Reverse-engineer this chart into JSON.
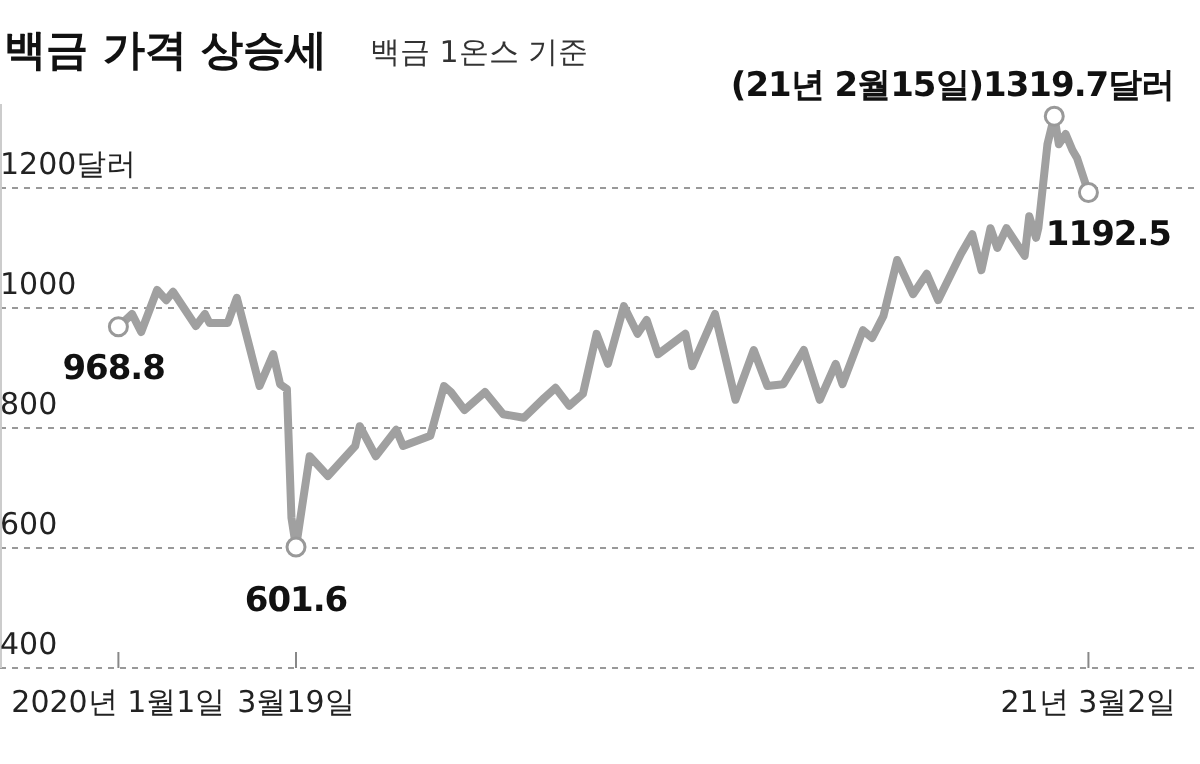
{
  "chart_data": {
    "type": "line",
    "title": "백금 가격 상승세",
    "subtitle": "백금 1온스 기준",
    "x": [
      "2020-01-01",
      "2020-01-07",
      "2020-01-11",
      "2020-01-18",
      "2020-01-22",
      "2020-01-25",
      "2020-02-04",
      "2020-02-08",
      "2020-02-10",
      "2020-02-18",
      "2020-02-22",
      "2020-03-03",
      "2020-03-09",
      "2020-03-12",
      "2020-03-15",
      "2020-03-17",
      "2020-03-19",
      "2020-03-25",
      "2020-04-02",
      "2020-04-14",
      "2020-04-16",
      "2020-04-23",
      "2020-05-02",
      "2020-05-05",
      "2020-05-17",
      "2020-05-23",
      "2020-05-26",
      "2020-06-01",
      "2020-06-10",
      "2020-06-18",
      "2020-06-27",
      "2020-07-06",
      "2020-07-11",
      "2020-07-17",
      "2020-07-23",
      "2020-07-29",
      "2020-08-03",
      "2020-08-10",
      "2020-08-16",
      "2020-08-20",
      "2020-08-25",
      "2020-09-06",
      "2020-09-09",
      "2020-09-19",
      "2020-09-28",
      "2020-10-06",
      "2020-10-12",
      "2020-10-19",
      "2020-10-28",
      "2020-11-04",
      "2020-11-11",
      "2020-11-14",
      "2020-11-23",
      "2020-11-27",
      "2020-12-02",
      "2020-12-08",
      "2020-12-15",
      "2020-12-21",
      "2020-12-26",
      "2021-01-05",
      "2021-01-10",
      "2021-01-14",
      "2021-01-18",
      "2021-01-21",
      "2021-01-25",
      "2021-02-02",
      "2021-02-04",
      "2021-02-07",
      "2021-02-08",
      "2021-02-12",
      "2021-02-15",
      "2021-02-17",
      "2021-02-20",
      "2021-02-23",
      "2021-02-25",
      "2021-03-02"
    ],
    "series": [
      {
        "color": "#a0a0a0",
        "values": [
          968.8,
          990,
          960,
          1030,
          1013,
          1027,
          970,
          990,
          975,
          975,
          1017,
          870,
          923,
          873,
          865,
          650,
          601.6,
          753,
          720,
          770,
          803,
          753,
          797,
          770,
          787,
          870,
          860,
          830,
          860,
          823,
          817,
          850,
          867,
          837,
          857,
          957,
          907,
          1003,
          957,
          980,
          923,
          957,
          903,
          990,
          847,
          930,
          870,
          873,
          930,
          847,
          907,
          873,
          963,
          950,
          987,
          1080,
          1023,
          1057,
          1013,
          1090,
          1123,
          1063,
          1133,
          1100,
          1133,
          1087,
          1153,
          1117,
          1133,
          1273,
          1319.7,
          1273,
          1290,
          1263,
          1250,
          1192.5
        ]
      }
    ],
    "xlim": [
      "2019-11-10",
      "2021-04-20"
    ],
    "xticks": [
      {
        "value": "2020-01-01",
        "label": "2020년 1월1일"
      },
      {
        "value": "2020-03-19",
        "label": "3월19일"
      },
      {
        "value": "2021-03-02",
        "label": "21년 3월2일"
      }
    ],
    "ylim": [
      400,
      1340
    ],
    "yticks": [
      400,
      600,
      800,
      1000,
      {
        "value": 1200,
        "label": "1200달러"
      }
    ],
    "grid": "y",
    "marker": "none",
    "line_style": "solid",
    "annotations": [
      {
        "text": "968.8",
        "x": "2020-01-01",
        "y": 968.8
      },
      {
        "text": "601.6",
        "x": "2020-03-19",
        "y": 601.6
      },
      {
        "text": "(21년 2월15일)1319.7달러",
        "x": "2021-02-15",
        "y": 1319.7
      },
      {
        "text": "1192.5",
        "x": "2021-03-02",
        "y": 1192.5
      }
    ]
  }
}
